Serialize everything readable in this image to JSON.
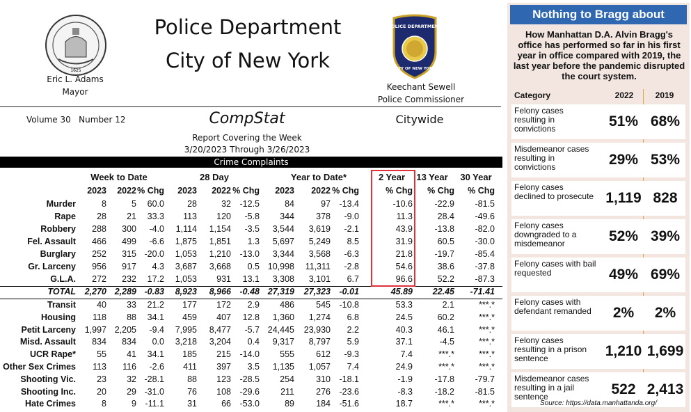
{
  "header": {
    "mayor_name": "Eric L. Adams",
    "mayor_title": "Mayor",
    "title_line1": "Police Department",
    "title_line2": "City of New York",
    "commissioner_name": "Keechant Sewell",
    "commissioner_title": "Police Commissioner",
    "badge_text_top": "POLICE DEPARTMENT",
    "badge_text_bottom": "CITY OF NEW YORK",
    "seal_year": "1625",
    "volume": "Volume 30",
    "number": "Number 12",
    "compstat": "CompStat",
    "scope": "Citywide",
    "report_line": "Report Covering the Week",
    "date_range": "3/20/2023  Through  3/26/2023",
    "section_bar": "Crime Complaints"
  },
  "table": {
    "groups": [
      "Week to Date",
      "28 Day",
      "Year to Date*",
      "2 Year",
      "13 Year",
      "30 Year"
    ],
    "col_headers": [
      "2023",
      "2022",
      "% Chg",
      "2023",
      "2022",
      "% Chg",
      "2023",
      "2022",
      "% Chg",
      "% Chg",
      "% Chg",
      "% Chg"
    ],
    "rows": [
      {
        "label": "Murder",
        "v": [
          "8",
          "5",
          "60.0",
          "28",
          "32",
          "-12.5",
          "84",
          "97",
          "-13.4",
          "-10.6",
          "-22.9",
          "-81.5"
        ]
      },
      {
        "label": "Rape",
        "v": [
          "28",
          "21",
          "33.3",
          "113",
          "120",
          "-5.8",
          "344",
          "378",
          "-9.0",
          "11.3",
          "28.4",
          "-49.6"
        ]
      },
      {
        "label": "Robbery",
        "v": [
          "288",
          "300",
          "-4.0",
          "1,114",
          "1,154",
          "-3.5",
          "3,544",
          "3,619",
          "-2.1",
          "43.9",
          "-13.8",
          "-82.0"
        ]
      },
      {
        "label": "Fel. Assault",
        "v": [
          "466",
          "499",
          "-6.6",
          "1,875",
          "1,851",
          "1.3",
          "5,697",
          "5,249",
          "8.5",
          "31.9",
          "60.5",
          "-30.0"
        ]
      },
      {
        "label": "Burglary",
        "v": [
          "252",
          "315",
          "-20.0",
          "1,053",
          "1,210",
          "-13.0",
          "3,344",
          "3,568",
          "-6.3",
          "21.8",
          "-19.7",
          "-85.4"
        ]
      },
      {
        "label": "Gr. Larceny",
        "v": [
          "956",
          "917",
          "4.3",
          "3,687",
          "3,668",
          "0.5",
          "10,998",
          "11,311",
          "-2.8",
          "54.6",
          "38.6",
          "-37.8"
        ]
      },
      {
        "label": "G.L.A.",
        "v": [
          "272",
          "232",
          "17.2",
          "1,053",
          "931",
          "13.1",
          "3,308",
          "3,101",
          "6.7",
          "96.6",
          "52.2",
          "-87.3"
        ]
      }
    ],
    "total": {
      "label": "TOTAL",
      "v": [
        "2,270",
        "2,289",
        "-0.83",
        "8,923",
        "8,966",
        "-0.48",
        "27,319",
        "27,323",
        "-0.01",
        "45.89",
        "22.45",
        "-71.41"
      ]
    },
    "rows2": [
      {
        "label": "Transit",
        "v": [
          "40",
          "33",
          "21.2",
          "177",
          "172",
          "2.9",
          "486",
          "545",
          "-10.8",
          "53.3",
          "2.1",
          "***.*"
        ]
      },
      {
        "label": "Housing",
        "v": [
          "118",
          "88",
          "34.1",
          "459",
          "407",
          "12.8",
          "1,360",
          "1,274",
          "6.8",
          "24.5",
          "60.2",
          "***.*"
        ]
      },
      {
        "label": "Petit Larceny",
        "v": [
          "1,997",
          "2,205",
          "-9.4",
          "7,995",
          "8,477",
          "-5.7",
          "24,445",
          "23,930",
          "2.2",
          "40.3",
          "46.1",
          "***.*"
        ]
      },
      {
        "label": "Misd. Assault",
        "v": [
          "834",
          "834",
          "0.0",
          "3,218",
          "3,204",
          "0.4",
          "9,317",
          "8,797",
          "5.9",
          "37.1",
          "-4.5",
          "***.*"
        ]
      },
      {
        "label": "UCR Rape*",
        "v": [
          "55",
          "41",
          "34.1",
          "185",
          "215",
          "-14.0",
          "555",
          "612",
          "-9.3",
          "7.4",
          "***.*",
          "***.*"
        ]
      },
      {
        "label": "Other Sex Crimes",
        "v": [
          "113",
          "116",
          "-2.6",
          "411",
          "397",
          "3.5",
          "1,135",
          "1,057",
          "7.4",
          "24.9",
          "***.*",
          "***.*"
        ]
      },
      {
        "label": "Shooting Vic.",
        "v": [
          "23",
          "32",
          "-28.1",
          "88",
          "123",
          "-28.5",
          "254",
          "310",
          "-18.1",
          "-1.9",
          "-17.8",
          "-79.7"
        ]
      },
      {
        "label": "Shooting Inc.",
        "v": [
          "20",
          "29",
          "-31.0",
          "76",
          "108",
          "-29.6",
          "211",
          "276",
          "-23.6",
          "-8.3",
          "-18.2",
          "-81.5"
        ]
      },
      {
        "label": "Hate Crimes",
        "v": [
          "8",
          "9",
          "-11.1",
          "31",
          "66",
          "-53.0",
          "89",
          "184",
          "-51.6",
          "18.7",
          "***.*",
          "***.*"
        ]
      }
    ]
  },
  "panel": {
    "title": "Nothing to Bragg about",
    "subtitle": "How Manhattan D.A. Alvin Bragg's office has performed so far in his first year in office compared with 2019, the last year before the pandemic disrupted the court system.",
    "col_category": "Category",
    "col_2022": "2022",
    "col_2019": "2019",
    "rows": [
      {
        "label": "Felony cases resulting in convictions",
        "y2022": "51%",
        "y2019": "68%"
      },
      {
        "label": "Misdemeanor cases resulting in convictions",
        "y2022": "29%",
        "y2019": "53%"
      },
      {
        "label": "Felony cases declined to prosecute",
        "y2022": "1,119",
        "y2019": "828"
      },
      {
        "label": "Felony cases downgraded to a misdemeanor",
        "y2022": "52%",
        "y2019": "39%"
      },
      {
        "label": "Felony cases with bail requested",
        "y2022": "49%",
        "y2019": "69%"
      },
      {
        "label": "Felony cases with defendant remanded",
        "y2022": "2%",
        "y2019": "2%"
      },
      {
        "label": "Felony cases resulting in a prison sentence",
        "y2022": "1,210",
        "y2019": "1,699"
      },
      {
        "label": "Misdemeanor cases resulting in a jail sentence",
        "y2022": "522",
        "y2019": "2,413"
      }
    ],
    "source": "Source: https://data.manhattanda.org/"
  }
}
